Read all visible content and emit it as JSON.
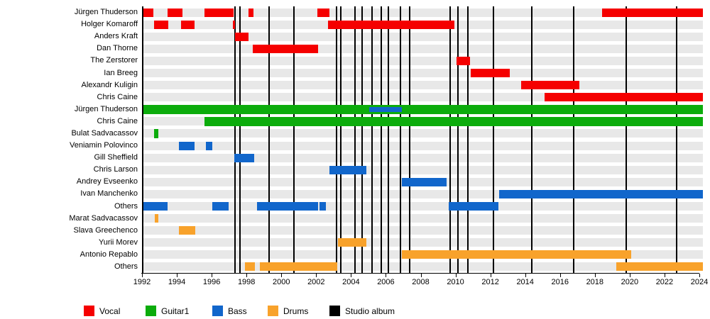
{
  "chart_data": {
    "type": "timeline-gantt",
    "title": "",
    "x_axis": {
      "min": 1992,
      "max": 2024,
      "tick_step": 2,
      "tick_labels": [
        "1992",
        "1994",
        "1996",
        "1998",
        "2000",
        "2002",
        "2004",
        "2006",
        "2008",
        "2010",
        "2012",
        "2014",
        "2016",
        "2018",
        "2020",
        "2022",
        "2024"
      ]
    },
    "colors": {
      "vocal": "#F50000",
      "guitar": "#0CAC0C",
      "bass": "#1166CB",
      "drums": "#F8A22B",
      "album": "#000000",
      "row_stripe": "#E8E8E8"
    },
    "legend": [
      {
        "label": "Vocal",
        "role": "vocal"
      },
      {
        "label": "Guitar1",
        "role": "guitar"
      },
      {
        "label": "Bass",
        "role": "bass"
      },
      {
        "label": "Drums",
        "role": "drums"
      },
      {
        "label": "Studio album",
        "role": "album"
      }
    ],
    "rows": [
      {
        "name": "Jürgen Thuderson",
        "role": "vocal",
        "periods": [
          [
            1992.0,
            1992.65
          ],
          [
            1993.45,
            1994.33
          ],
          [
            1995.6,
            1997.25
          ],
          [
            1998.1,
            1998.4
          ],
          [
            2002.05,
            2002.77
          ],
          [
            2018.4,
            2024.2
          ]
        ]
      },
      {
        "name": "Holger Komaroff",
        "role": "vocal",
        "periods": [
          [
            1992.7,
            1993.5
          ],
          [
            1994.26,
            1995.02
          ],
          [
            1997.22,
            1997.36
          ],
          [
            2002.7,
            2009.95
          ]
        ]
      },
      {
        "name": "Anders Kraft",
        "role": "vocal",
        "periods": [
          [
            1997.36,
            1998.13
          ]
        ]
      },
      {
        "name": "Dan Thorne",
        "role": "vocal",
        "periods": [
          [
            1998.36,
            2002.1
          ]
        ]
      },
      {
        "name": "The Zerstorer",
        "role": "vocal",
        "periods": [
          [
            2010.06,
            2010.83
          ]
        ]
      },
      {
        "name": "Ian Breeg",
        "role": "vocal",
        "periods": [
          [
            2010.87,
            2013.13
          ]
        ]
      },
      {
        "name": "Alexandr Kuligin",
        "role": "vocal",
        "periods": [
          [
            2013.75,
            2017.12
          ]
        ]
      },
      {
        "name": "Chris Caine",
        "role": "vocal",
        "periods": [
          [
            2015.1,
            2024.2
          ]
        ]
      },
      {
        "name": "Jürgen Thuderson",
        "role": "guitar",
        "periods": [
          [
            1992.05,
            2024.2
          ]
        ],
        "overlay": {
          "role": "bass",
          "period": [
            2005.05,
            2006.9
          ]
        }
      },
      {
        "name": "Chris Caine",
        "role": "guitar",
        "periods": [
          [
            1995.6,
            2024.2
          ]
        ]
      },
      {
        "name": "Bulat Sadvacassov",
        "role": "guitar",
        "periods": [
          [
            1992.7,
            1992.95
          ]
        ]
      },
      {
        "name": "Veniamin Polovinco",
        "role": "bass",
        "periods": [
          [
            1994.1,
            1995.0
          ],
          [
            1995.65,
            1996.05
          ]
        ]
      },
      {
        "name": "Gill Sheffield",
        "role": "bass",
        "periods": [
          [
            1997.3,
            1998.45
          ]
        ]
      },
      {
        "name": "Chris Larson",
        "role": "bass",
        "periods": [
          [
            2002.75,
            2004.9
          ]
        ]
      },
      {
        "name": "Andrey Evseenko",
        "role": "bass",
        "periods": [
          [
            2006.9,
            2009.5
          ]
        ]
      },
      {
        "name": "Ivan Manchenko",
        "role": "bass",
        "periods": [
          [
            2012.5,
            2024.2
          ]
        ]
      },
      {
        "name": "Others",
        "role": "bass",
        "periods": [
          [
            1992.0,
            1993.45
          ],
          [
            1996.05,
            1996.97
          ],
          [
            1998.6,
            2002.1
          ],
          [
            2002.2,
            2002.55
          ],
          [
            2009.6,
            2012.48
          ]
        ]
      },
      {
        "name": "Marat Sadvacassov",
        "role": "drums",
        "periods": [
          [
            1992.75,
            1992.95
          ]
        ]
      },
      {
        "name": "Slava Greechenco",
        "role": "drums",
        "periods": [
          [
            1994.1,
            1995.05
          ]
        ]
      },
      {
        "name": "Yurii Morev",
        "role": "drums",
        "periods": [
          [
            2003.25,
            2004.9
          ]
        ]
      },
      {
        "name": "Antonio Repablo",
        "role": "drums",
        "periods": [
          [
            2006.9,
            2020.1
          ]
        ]
      },
      {
        "name": "Others",
        "role": "drums",
        "periods": [
          [
            1997.9,
            1998.47
          ],
          [
            1998.77,
            2003.22
          ],
          [
            2019.25,
            2024.2
          ]
        ]
      }
    ],
    "album_lines": [
      1997.32,
      1997.64,
      1999.28,
      2000.71,
      2003.18,
      2003.43,
      2004.24,
      2004.65,
      2005.19,
      2005.74,
      2006.14,
      2006.82,
      2007.36,
      2009.71,
      2010.15,
      2010.72,
      2012.18,
      2014.38,
      2016.77,
      2019.81,
      2022.71
    ]
  }
}
